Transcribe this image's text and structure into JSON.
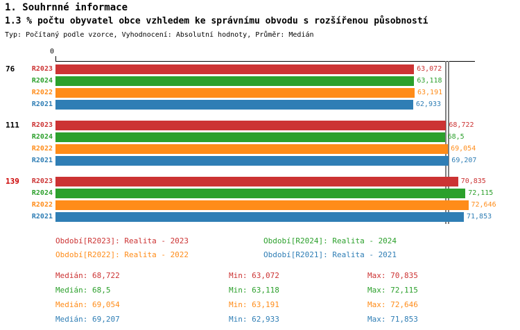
{
  "title": "1. Souhrnné informace",
  "subtitle": "1.3 % počtu obyvatel obce vzhledem ke správnímu obvodu s rozšířenou působností",
  "meta": "Typ: Počítaný podle vzorce, Vyhodnocení: Absolutní hodnoty, Průměr: Medián",
  "colors": {
    "R2023": "#cc3333",
    "R2024": "#2ca02c",
    "R2022": "#ff8c19",
    "R2021": "#2f7eb5",
    "highlight_red": "#cc0000",
    "axis": "#000000",
    "median_line": "#808080"
  },
  "chart_data": {
    "type": "bar",
    "orientation": "horizontal",
    "title": "1.3 % počtu obyvatel obce vzhledem ke správnímu obvodu s rozšířenou působností",
    "zero_label": "0",
    "xlim": [
      0,
      73.8
    ],
    "grid": false,
    "series_order": [
      "R2023",
      "R2024",
      "R2022",
      "R2021"
    ],
    "groups": [
      {
        "label": "76",
        "label_color": "#000000",
        "bars": [
          {
            "series": "R2023",
            "value": 63.072,
            "value_label": "63,072"
          },
          {
            "series": "R2024",
            "value": 63.118,
            "value_label": "63,118"
          },
          {
            "series": "R2022",
            "value": 63.191,
            "value_label": "63,191"
          },
          {
            "series": "R2021",
            "value": 62.933,
            "value_label": "62,933"
          }
        ]
      },
      {
        "label": "111",
        "label_color": "#000000",
        "bars": [
          {
            "series": "R2023",
            "value": 68.722,
            "value_label": "68,722"
          },
          {
            "series": "R2024",
            "value": 68.5,
            "value_label": "68,5"
          },
          {
            "series": "R2022",
            "value": 69.054,
            "value_label": "69,054"
          },
          {
            "series": "R2021",
            "value": 69.207,
            "value_label": "69,207"
          }
        ]
      },
      {
        "label": "139",
        "label_color": "#cc0000",
        "bars": [
          {
            "series": "R2023",
            "value": 70.835,
            "value_label": "70,835"
          },
          {
            "series": "R2024",
            "value": 72.115,
            "value_label": "72,115"
          },
          {
            "series": "R2022",
            "value": 72.646,
            "value_label": "72,646"
          },
          {
            "series": "R2021",
            "value": 71.853,
            "value_label": "71,853"
          }
        ]
      }
    ],
    "medians": {
      "R2023": 68.722,
      "R2024": 68.5,
      "R2022": 69.054,
      "R2021": 69.207
    }
  },
  "legend": [
    {
      "series": "R2023",
      "label": "Období[R2023]: Realita - 2023"
    },
    {
      "series": "R2024",
      "label": "Období[R2024]: Realita - 2024"
    },
    {
      "series": "R2022",
      "label": "Období[R2022]: Realita - 2022"
    },
    {
      "series": "R2021",
      "label": "Období[R2021]: Realita - 2021"
    }
  ],
  "stats": [
    {
      "series": "R2023",
      "median": "Medián: 68,722",
      "min": "Min: 63,072",
      "max": "Max: 70,835"
    },
    {
      "series": "R2024",
      "median": "Medián: 68,5",
      "min": "Min: 63,118",
      "max": "Max: 72,115"
    },
    {
      "series": "R2022",
      "median": "Medián: 69,054",
      "min": "Min: 63,191",
      "max": "Max: 72,646"
    },
    {
      "series": "R2021",
      "median": "Medián: 69,207",
      "min": "Min: 62,933",
      "max": "Max: 71,853"
    }
  ]
}
